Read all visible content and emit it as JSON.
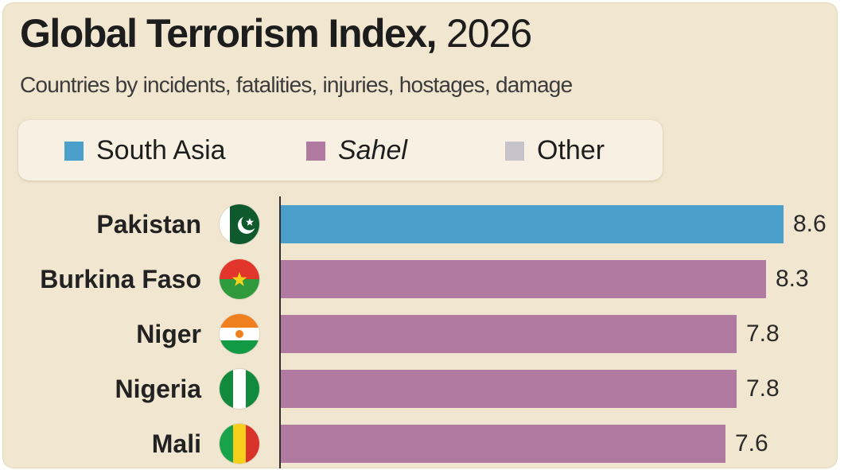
{
  "header": {
    "title_main": "Global Terrorism Index,",
    "title_year": " 2026",
    "subtitle": "Countries by incidents, fatalities, injuries, hostages, damage"
  },
  "legend": {
    "items": [
      {
        "label": "South Asia",
        "color": "#4b9fcb",
        "italic": false
      },
      {
        "label": "Sahel",
        "color": "#b07aa1",
        "italic": true
      },
      {
        "label": "Other",
        "color": "#c6c3cb",
        "italic": false
      }
    ]
  },
  "chart_data": {
    "type": "bar",
    "orientation": "horizontal",
    "title": "Global Terrorism Index, 2026",
    "subtitle": "Countries by incidents, fatalities, injuries, hostages, damage",
    "categories": [
      "Pakistan",
      "Burkina Faso",
      "Niger",
      "Nigeria",
      "Mali"
    ],
    "values": [
      8.6,
      8.3,
      7.8,
      7.8,
      7.6
    ],
    "value_labels": [
      "8.6",
      "8.3",
      "7.8",
      "7.8",
      "7.6"
    ],
    "groups": [
      "South Asia",
      "Sahel",
      "Sahel",
      "Sahel",
      "Sahel"
    ],
    "colors": [
      "#4b9fcb",
      "#b07aa1",
      "#b07aa1",
      "#b07aa1",
      "#b07aa1"
    ],
    "flags": [
      "pakistan-flag-icon",
      "burkina-faso-flag-icon",
      "niger-flag-icon",
      "nigeria-flag-icon",
      "mali-flag-icon"
    ],
    "xlim": [
      0,
      8.6
    ],
    "grid": false,
    "legend_position": "top"
  }
}
